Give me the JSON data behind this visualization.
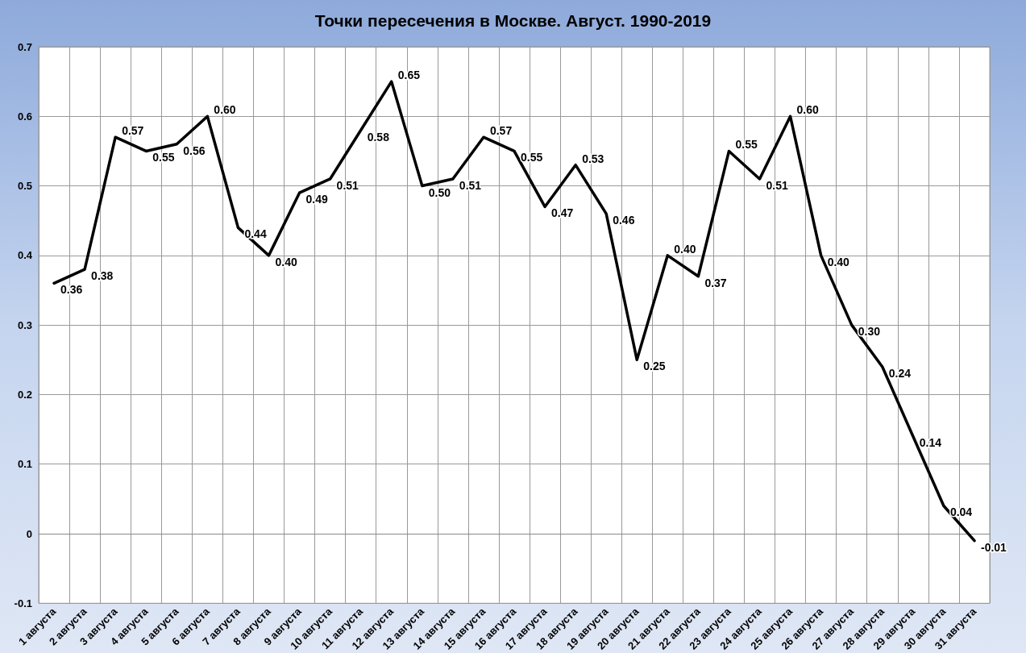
{
  "chart_data": {
    "type": "line",
    "title": "Точки пересечения в Москве. Август. 1990-2019",
    "categories": [
      "1 августа",
      "2 августа",
      "3 августа",
      "4 августа",
      "5 августа",
      "6 августа",
      "7 августа",
      "8 августа",
      "9 августа",
      "10 августа",
      "11 августа",
      "12 августа",
      "13 августа",
      "14 августа",
      "15 августа",
      "16 августа",
      "17 августа",
      "18 августа",
      "19 августа",
      "20 августа",
      "21 августа",
      "22 августа",
      "23 августа",
      "24 августа",
      "25 августа",
      "26 августа",
      "27 августа",
      "28 августа",
      "29 августа",
      "30 августа",
      "31 августа"
    ],
    "series": [
      {
        "color": "#000000",
        "values": [
          0.36,
          0.38,
          0.57,
          0.55,
          0.56,
          0.6,
          0.44,
          0.4,
          0.49,
          0.51,
          0.58,
          0.65,
          0.5,
          0.51,
          0.57,
          0.55,
          0.47,
          0.53,
          0.46,
          0.25,
          0.4,
          0.37,
          0.55,
          0.51,
          0.6,
          0.4,
          0.3,
          0.24,
          0.14,
          0.04,
          -0.01
        ],
        "value_labels": [
          "0.36",
          "0.38",
          "0.57",
          "0.55",
          "0.56",
          "0.60",
          "0.44",
          "0.40",
          "0.49",
          "0.51",
          "0.58",
          "0.65",
          "0.50",
          "0.51",
          "0.57",
          "0.55",
          "0.47",
          "0.53",
          "0.46",
          "0.25",
          "0.40",
          "0.37",
          "0.55",
          "0.51",
          "0.60",
          "0.40",
          "0.30",
          "0.24",
          "0.14",
          "0.04",
          "-0.01"
        ]
      }
    ],
    "ylim": [
      -0.1,
      0.7
    ],
    "yticks": [
      -0.1,
      0,
      0.1,
      0.2,
      0.3,
      0.4,
      0.5,
      0.6,
      0.7
    ],
    "grid": true,
    "marker": "none",
    "line_style": "solid"
  }
}
